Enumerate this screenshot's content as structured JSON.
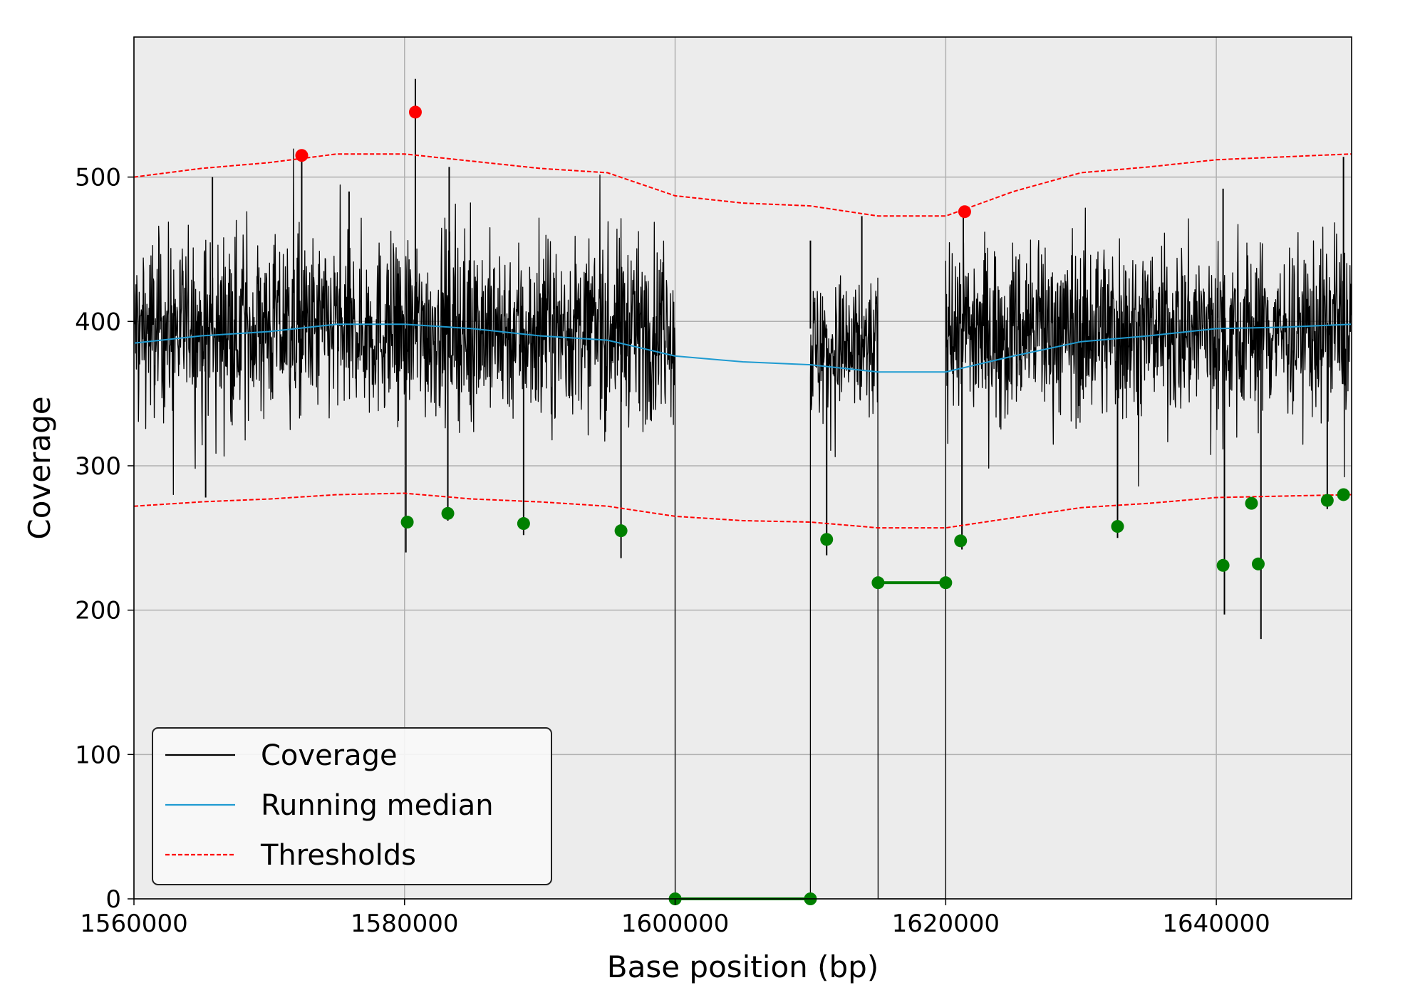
{
  "chart_data": {
    "type": "line",
    "xlabel": "Base position (bp)",
    "ylabel": "Coverage",
    "xlim": [
      1560000,
      1650000
    ],
    "ylim": [
      0,
      597
    ],
    "x_ticks": [
      1560000,
      1580000,
      1600000,
      1620000,
      1640000
    ],
    "x_tick_labels": [
      "1560000",
      "1580000",
      "1600000",
      "1620000",
      "1640000"
    ],
    "y_ticks": [
      0,
      100,
      200,
      300,
      400,
      500
    ],
    "y_tick_labels": [
      "0",
      "100",
      "200",
      "300",
      "400",
      "500"
    ],
    "grid": true,
    "legend_position": "lower-left",
    "legend": [
      "Coverage",
      "Running median",
      "Thresholds"
    ],
    "colors": {
      "coverage": "#000000",
      "running_median": "#1f9bd1",
      "thresholds": "#ff0000",
      "high_outlier": "#ff0000",
      "low_outlier": "#008000",
      "plot_background": "#ececec",
      "grid": "#b0b0b0"
    },
    "coverage_segments": [
      {
        "x_start": 1560000,
        "x_end": 1600000,
        "level": 395,
        "noise": 38
      },
      {
        "x_start": 1610000,
        "x_end": 1615000,
        "level": 380,
        "noise": 32
      },
      {
        "x_start": 1620000,
        "x_end": 1650000,
        "level": 395,
        "noise": 38
      }
    ],
    "coverage_zero_regions": [
      [
        1600000,
        1610000
      ],
      [
        1615000,
        1620000
      ]
    ],
    "coverage_spikes": [
      {
        "x": 1565800,
        "y": 500
      },
      {
        "x": 1565300,
        "y": 278
      },
      {
        "x": 1572400,
        "y": 515
      },
      {
        "x": 1575900,
        "y": 490
      },
      {
        "x": 1580100,
        "y": 240
      },
      {
        "x": 1580800,
        "y": 568
      },
      {
        "x": 1583300,
        "y": 507
      },
      {
        "x": 1583200,
        "y": 262
      },
      {
        "x": 1588800,
        "y": 252
      },
      {
        "x": 1596000,
        "y": 236
      },
      {
        "x": 1610000,
        "y": 456
      },
      {
        "x": 1611200,
        "y": 238
      },
      {
        "x": 1613800,
        "y": 473
      },
      {
        "x": 1621300,
        "y": 476
      },
      {
        "x": 1621200,
        "y": 242
      },
      {
        "x": 1632700,
        "y": 250
      },
      {
        "x": 1640500,
        "y": 492
      },
      {
        "x": 1640600,
        "y": 197
      },
      {
        "x": 1643300,
        "y": 180
      },
      {
        "x": 1648200,
        "y": 270
      },
      {
        "x": 1649400,
        "y": 514
      }
    ],
    "running_median": {
      "x": [
        1560000,
        1565000,
        1570000,
        1575000,
        1580000,
        1585000,
        1590000,
        1595000,
        1600000,
        1605000,
        1610000,
        1615000,
        1620000,
        1625000,
        1630000,
        1635000,
        1640000,
        1645000,
        1650000
      ],
      "y": [
        385,
        390,
        393,
        398,
        398,
        395,
        390,
        387,
        376,
        372,
        370,
        365,
        365,
        376,
        386,
        390,
        395,
        396,
        398
      ]
    },
    "upper_threshold": {
      "x": [
        1560000,
        1565000,
        1570000,
        1575000,
        1580000,
        1585000,
        1590000,
        1595000,
        1600000,
        1605000,
        1610000,
        1615000,
        1620000,
        1625000,
        1630000,
        1635000,
        1640000,
        1645000,
        1650000
      ],
      "y": [
        500,
        506,
        510,
        516,
        516,
        511,
        506,
        503,
        487,
        482,
        480,
        473,
        473,
        490,
        503,
        507,
        512,
        514,
        516
      ]
    },
    "lower_threshold": {
      "x": [
        1560000,
        1565000,
        1570000,
        1575000,
        1580000,
        1585000,
        1590000,
        1595000,
        1600000,
        1605000,
        1610000,
        1615000,
        1620000,
        1625000,
        1630000,
        1635000,
        1640000,
        1645000,
        1650000
      ],
      "y": [
        272,
        275,
        277,
        280,
        281,
        277,
        275,
        272,
        265,
        262,
        261,
        257,
        257,
        264,
        271,
        274,
        278,
        279,
        280
      ]
    },
    "high_outliers": [
      {
        "x": 1572400,
        "y": 515
      },
      {
        "x": 1580800,
        "y": 545
      },
      {
        "x": 1621400,
        "y": 476
      }
    ],
    "low_outliers": [
      {
        "x": 1580200,
        "y": 261
      },
      {
        "x": 1583200,
        "y": 267
      },
      {
        "x": 1588800,
        "y": 260
      },
      {
        "x": 1596000,
        "y": 255
      },
      {
        "x": 1600000,
        "y": 0
      },
      {
        "x": 1610000,
        "y": 0
      },
      {
        "x": 1611200,
        "y": 249
      },
      {
        "x": 1615000,
        "y": 219
      },
      {
        "x": 1620000,
        "y": 219
      },
      {
        "x": 1621100,
        "y": 248
      },
      {
        "x": 1632700,
        "y": 258
      },
      {
        "x": 1640500,
        "y": 231
      },
      {
        "x": 1642600,
        "y": 274
      },
      {
        "x": 1643100,
        "y": 232
      },
      {
        "x": 1648200,
        "y": 276
      },
      {
        "x": 1649400,
        "y": 280
      }
    ],
    "low_outlier_segments": [
      {
        "x_start": 1600000,
        "x_end": 1610000,
        "y": 0
      },
      {
        "x_start": 1615000,
        "x_end": 1620000,
        "y": 219
      }
    ]
  }
}
